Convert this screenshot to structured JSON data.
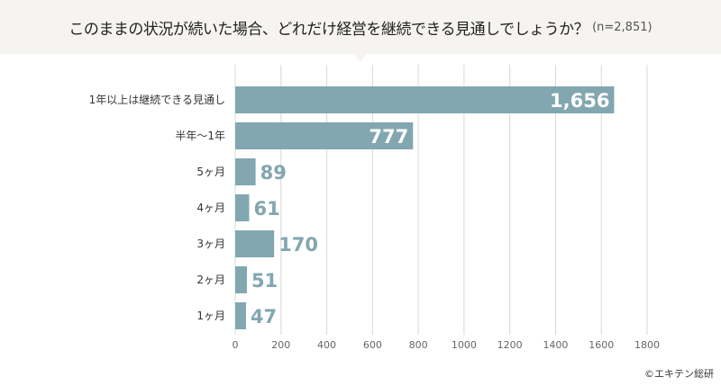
{
  "header": {
    "title": "このままの状況が続いた場合、どれだけ経営を継続できる見通しでしょうか？",
    "sample": "(n=2,851)"
  },
  "chart_data": {
    "type": "bar",
    "orientation": "horizontal",
    "categories": [
      "1年以上は継続できる見通し",
      "半年〜1年",
      "5ヶ月",
      "4ヶ月",
      "3ヶ月",
      "2ヶ月",
      "1ヶ月"
    ],
    "values": [
      1656,
      777,
      89,
      61,
      170,
      51,
      47
    ],
    "value_labels": [
      "1,656",
      "777",
      "89",
      "61",
      "170",
      "51",
      "47"
    ],
    "xlim": [
      0,
      1800
    ],
    "xticks": [
      "0",
      "200",
      "400",
      "600",
      "800",
      "1000",
      "1200",
      "1400",
      "1600",
      "1800"
    ],
    "grid": true,
    "bar_color": "#82a7b0"
  },
  "credit": "©エキテン総研"
}
